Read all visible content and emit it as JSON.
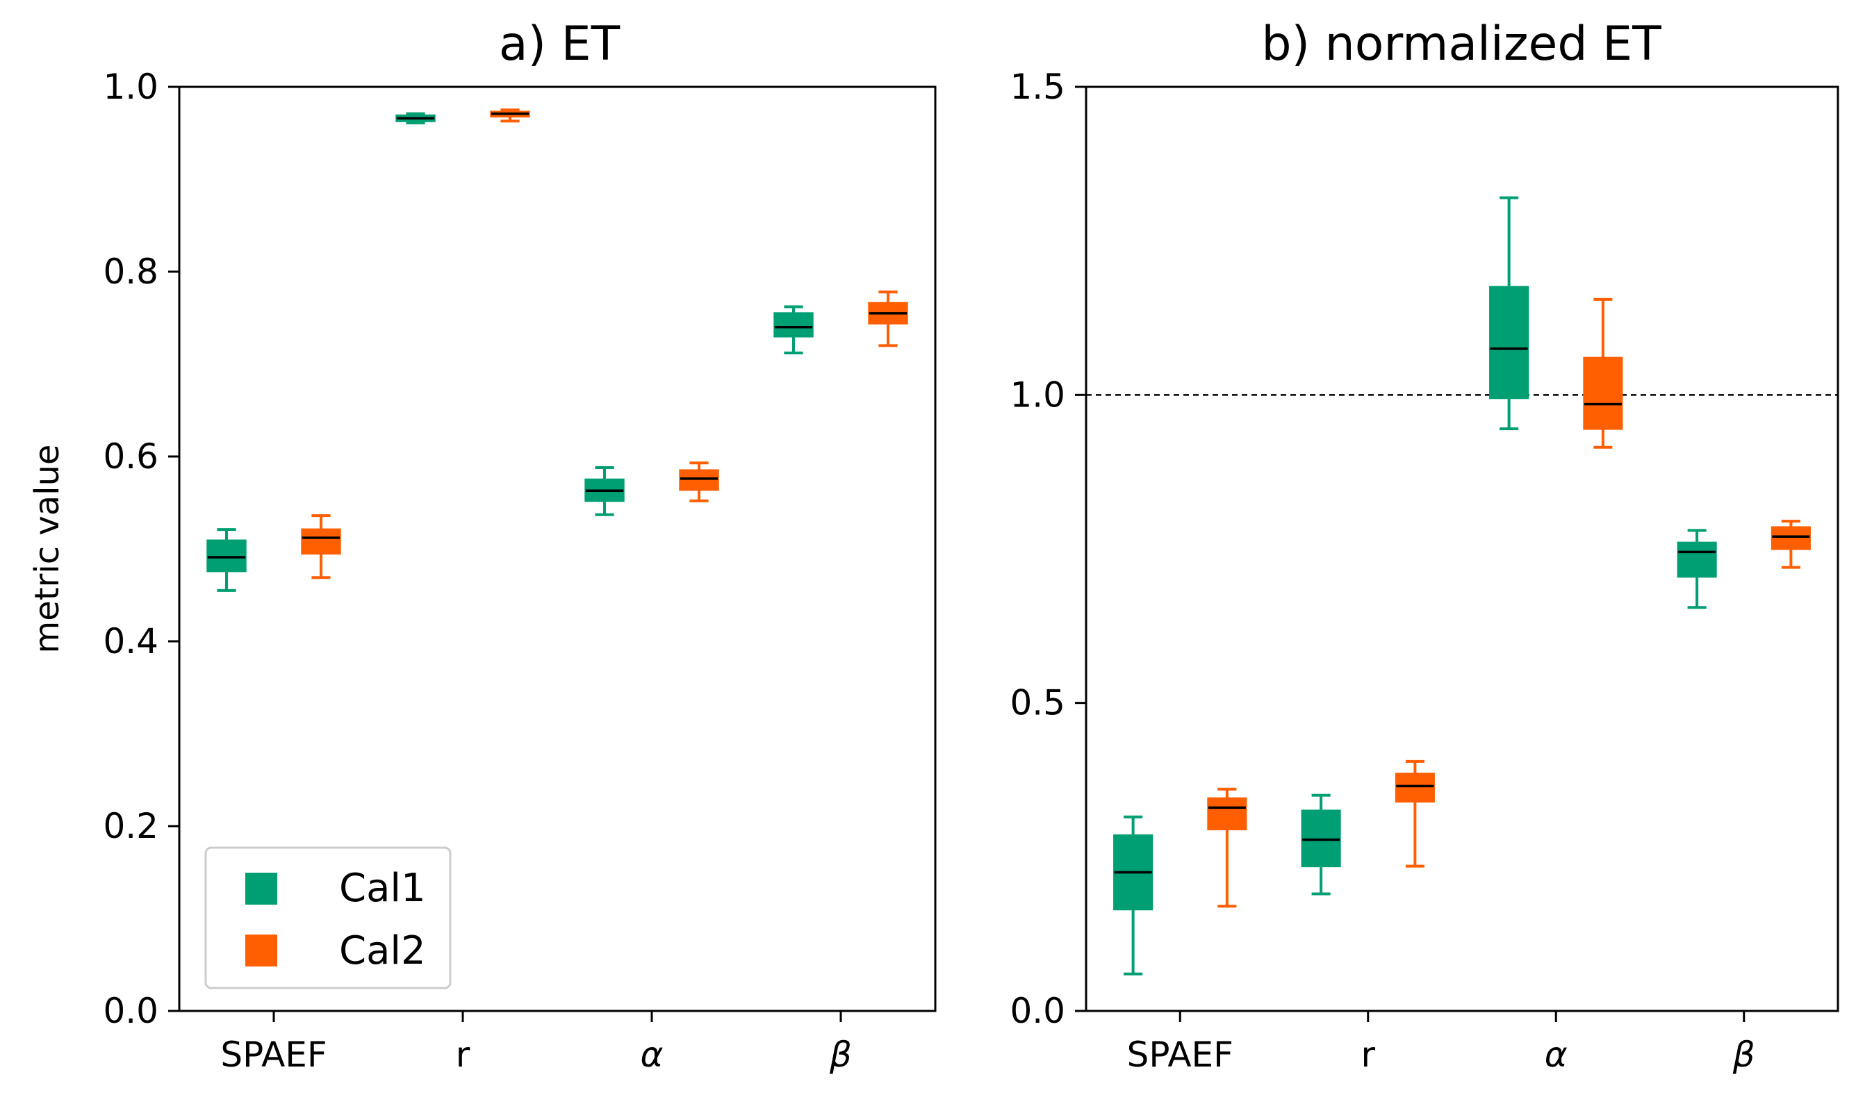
{
  "colors": {
    "cal1": "#009E73",
    "cal2": "#FF5F00",
    "axis": "#000000",
    "median": "#000000",
    "legend_border": "#cccccc"
  },
  "ylabel": "metric value",
  "legend": [
    {
      "key": "cal1",
      "label": "Cal1"
    },
    {
      "key": "cal2",
      "label": "Cal2"
    }
  ],
  "chart_data": [
    {
      "type": "box",
      "title": "a) ET",
      "categories": [
        "SPAEF",
        "r",
        "α",
        "β"
      ],
      "ylim": [
        0.0,
        1.0
      ],
      "yticks": [
        "0.0",
        "0.2",
        "0.4",
        "0.6",
        "0.8",
        "1.0"
      ],
      "reference_line": null,
      "series": [
        {
          "name": "Cal1",
          "color_key": "cal1",
          "boxes": [
            {
              "whisker_low": 0.455,
              "q1": 0.476,
              "median": 0.491,
              "q3": 0.509,
              "whisker_high": 0.521
            },
            {
              "whisker_low": 0.961,
              "q1": 0.963,
              "median": 0.966,
              "q3": 0.969,
              "whisker_high": 0.971
            },
            {
              "whisker_low": 0.537,
              "q1": 0.552,
              "median": 0.563,
              "q3": 0.575,
              "whisker_high": 0.588
            },
            {
              "whisker_low": 0.712,
              "q1": 0.73,
              "median": 0.74,
              "q3": 0.755,
              "whisker_high": 0.762
            }
          ]
        },
        {
          "name": "Cal2",
          "color_key": "cal2",
          "boxes": [
            {
              "whisker_low": 0.469,
              "q1": 0.495,
              "median": 0.512,
              "q3": 0.521,
              "whisker_high": 0.536
            },
            {
              "whisker_low": 0.963,
              "q1": 0.968,
              "median": 0.971,
              "q3": 0.973,
              "whisker_high": 0.975
            },
            {
              "whisker_low": 0.552,
              "q1": 0.564,
              "median": 0.576,
              "q3": 0.585,
              "whisker_high": 0.593
            },
            {
              "whisker_low": 0.72,
              "q1": 0.744,
              "median": 0.755,
              "q3": 0.766,
              "whisker_high": 0.778
            }
          ]
        }
      ]
    },
    {
      "type": "box",
      "title": "b) normalized ET",
      "categories": [
        "SPAEF",
        "r",
        "α",
        "β"
      ],
      "ylim": [
        0.0,
        1.5
      ],
      "yticks": [
        "0.0",
        "0.5",
        "1.0",
        "1.5"
      ],
      "reference_line": 1.0,
      "series": [
        {
          "name": "Cal1",
          "color_key": "cal1",
          "boxes": [
            {
              "whisker_low": 0.06,
              "q1": 0.165,
              "median": 0.225,
              "q3": 0.285,
              "whisker_high": 0.315
            },
            {
              "whisker_low": 0.19,
              "q1": 0.235,
              "median": 0.278,
              "q3": 0.325,
              "whisker_high": 0.35
            },
            {
              "whisker_low": 0.945,
              "q1": 0.995,
              "median": 1.075,
              "q3": 1.175,
              "whisker_high": 1.32
            },
            {
              "whisker_low": 0.655,
              "q1": 0.705,
              "median": 0.745,
              "q3": 0.76,
              "whisker_high": 0.78
            }
          ]
        },
        {
          "name": "Cal2",
          "color_key": "cal2",
          "boxes": [
            {
              "whisker_low": 0.17,
              "q1": 0.295,
              "median": 0.33,
              "q3": 0.345,
              "whisker_high": 0.36
            },
            {
              "whisker_low": 0.235,
              "q1": 0.34,
              "median": 0.365,
              "q3": 0.385,
              "whisker_high": 0.405
            },
            {
              "whisker_low": 0.915,
              "q1": 0.945,
              "median": 0.985,
              "q3": 1.06,
              "whisker_high": 1.155
            },
            {
              "whisker_low": 0.72,
              "q1": 0.75,
              "median": 0.77,
              "q3": 0.785,
              "whisker_high": 0.795
            }
          ]
        }
      ]
    }
  ]
}
